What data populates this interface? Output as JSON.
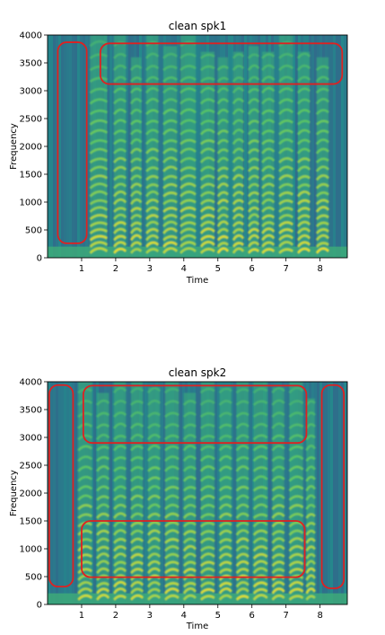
{
  "chart_data": [
    {
      "type": "heatmap",
      "title": "clean spk1",
      "xlabel": "Time",
      "ylabel": "Frequency",
      "xlim": [
        0,
        8.8
      ],
      "ylim": [
        0,
        4000
      ],
      "xticks": [
        1,
        2,
        3,
        4,
        5,
        6,
        7,
        8
      ],
      "yticks": [
        0,
        500,
        1000,
        1500,
        2000,
        2500,
        3000,
        3500,
        4000
      ],
      "colormap": "viridis",
      "speech_bursts": [
        {
          "t0": 1.25,
          "t1": 1.75,
          "f_top": 4000
        },
        {
          "t0": 1.95,
          "t1": 2.3,
          "f_top": 4000
        },
        {
          "t0": 2.45,
          "t1": 2.75,
          "f_top": 3600
        },
        {
          "t0": 2.9,
          "t1": 3.25,
          "f_top": 4000
        },
        {
          "t0": 3.4,
          "t1": 3.8,
          "f_top": 3800
        },
        {
          "t0": 3.9,
          "t1": 4.35,
          "f_top": 4000
        },
        {
          "t0": 4.5,
          "t1": 4.9,
          "f_top": 3700
        },
        {
          "t0": 5.0,
          "t1": 5.3,
          "f_top": 3600
        },
        {
          "t0": 5.45,
          "t1": 5.75,
          "f_top": 3700
        },
        {
          "t0": 5.9,
          "t1": 6.2,
          "f_top": 3800
        },
        {
          "t0": 6.3,
          "t1": 6.65,
          "f_top": 3700
        },
        {
          "t0": 6.8,
          "t1": 7.2,
          "f_top": 4000
        },
        {
          "t0": 7.35,
          "t1": 7.7,
          "f_top": 3700
        },
        {
          "t0": 7.9,
          "t1": 8.25,
          "f_top": 3600
        }
      ],
      "annotations": [
        {
          "shape": "rounded-rect",
          "color": "#e02020",
          "t0": 0.3,
          "t1": 1.15,
          "f0": 260,
          "f1": 3870
        },
        {
          "shape": "rounded-rect",
          "color": "#e02020",
          "t0": 1.55,
          "t1": 8.65,
          "f0": 3120,
          "f1": 3850
        }
      ]
    },
    {
      "type": "heatmap",
      "title": "clean spk2",
      "xlabel": "Time",
      "ylabel": "Frequency",
      "xlim": [
        0,
        8.8
      ],
      "ylim": [
        0,
        4000
      ],
      "xticks": [
        1,
        2,
        3,
        4,
        5,
        6,
        7,
        8
      ],
      "yticks": [
        0,
        500,
        1000,
        1500,
        2000,
        2500,
        3000,
        3500,
        4000
      ],
      "colormap": "viridis",
      "speech_bursts": [
        {
          "t0": 0.9,
          "t1": 1.3,
          "f_top": 4000
        },
        {
          "t0": 1.45,
          "t1": 1.8,
          "f_top": 3800
        },
        {
          "t0": 1.95,
          "t1": 2.3,
          "f_top": 4000
        },
        {
          "t0": 2.45,
          "t1": 2.8,
          "f_top": 4000
        },
        {
          "t0": 2.95,
          "t1": 3.3,
          "f_top": 3900
        },
        {
          "t0": 3.45,
          "t1": 3.85,
          "f_top": 4000
        },
        {
          "t0": 4.0,
          "t1": 4.35,
          "f_top": 3800
        },
        {
          "t0": 4.5,
          "t1": 4.9,
          "f_top": 4000
        },
        {
          "t0": 5.05,
          "t1": 5.4,
          "f_top": 3900
        },
        {
          "t0": 5.55,
          "t1": 5.9,
          "f_top": 4000
        },
        {
          "t0": 6.05,
          "t1": 6.45,
          "f_top": 4000
        },
        {
          "t0": 6.6,
          "t1": 6.95,
          "f_top": 3900
        },
        {
          "t0": 7.1,
          "t1": 7.5,
          "f_top": 4000
        },
        {
          "t0": 7.6,
          "t1": 7.85,
          "f_top": 3700
        }
      ],
      "annotations": [
        {
          "shape": "rounded-rect",
          "color": "#e02020",
          "t0": 0.05,
          "t1": 0.75,
          "f0": 320,
          "f1": 3940
        },
        {
          "shape": "rounded-rect",
          "color": "#e02020",
          "t0": 1.05,
          "t1": 7.6,
          "f0": 2900,
          "f1": 3930
        },
        {
          "shape": "rounded-rect",
          "color": "#e02020",
          "t0": 1.0,
          "t1": 7.55,
          "f0": 490,
          "f1": 1500
        },
        {
          "shape": "rounded-rect",
          "color": "#e02020",
          "t0": 8.05,
          "t1": 8.7,
          "f0": 290,
          "f1": 3940
        }
      ]
    }
  ]
}
